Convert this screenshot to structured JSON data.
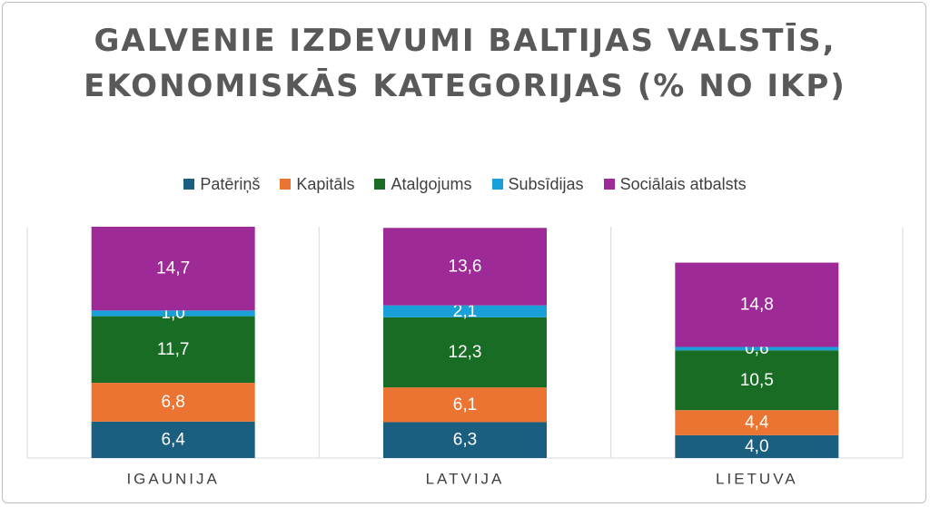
{
  "chart_data": {
    "type": "bar",
    "stacked": true,
    "title": "GALVENIE IZDEVUMI BALTIJAS VALSTĪS, EKONOMISKĀS KATEGORIJAS (% NO IKP)",
    "categories": [
      "IGAUNIJA",
      "LATVIJA",
      "LIETUVA"
    ],
    "series": [
      {
        "name": "Patēriņš",
        "color": "#1a5e80",
        "values": [
          6.4,
          6.3,
          4.0
        ],
        "labels": [
          "6,4",
          "6,3",
          "4,0"
        ]
      },
      {
        "name": "Kapitāls",
        "color": "#ec7433",
        "values": [
          6.8,
          6.1,
          4.4
        ],
        "labels": [
          "6,8",
          "6,1",
          "4,4"
        ]
      },
      {
        "name": "Atalgojums",
        "color": "#186c23",
        "values": [
          11.7,
          12.3,
          10.5
        ],
        "labels": [
          "11,7",
          "12,3",
          "10,5"
        ]
      },
      {
        "name": "Subsīdijas",
        "color": "#1aa0d8",
        "values": [
          1.0,
          2.1,
          0.6
        ],
        "labels": [
          "1,0",
          "2,1",
          "0,6"
        ]
      },
      {
        "name": "Sociālais atbalsts",
        "color": "#9e2a98",
        "values": [
          14.7,
          13.6,
          14.8
        ],
        "labels": [
          "14,7",
          "13,6",
          "14,8"
        ]
      }
    ],
    "legend": "top",
    "grid": false
  }
}
